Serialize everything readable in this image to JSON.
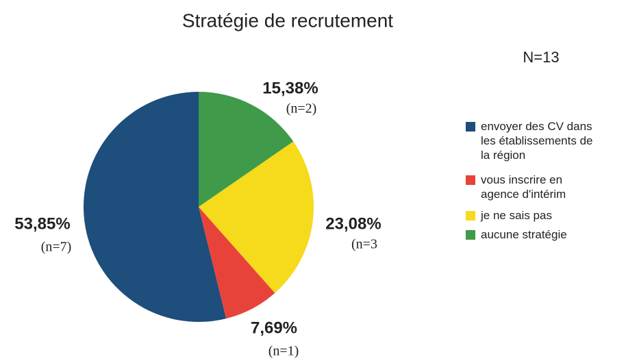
{
  "chart_data": {
    "type": "pie",
    "title": "Stratégie de recrutement",
    "annotation": "N=13",
    "direction": "counterclockwise",
    "categories": [
      "envoyer des CV dans les établissements de la région",
      "vous inscrire en agence d'intérim",
      "je ne sais pas",
      "aucune stratégie"
    ],
    "values": [
      53.85,
      7.69,
      23.08,
      15.38
    ],
    "value_labels": [
      "53,85%",
      "7,69%",
      "23,08%",
      "15,38%"
    ],
    "counts": [
      7,
      1,
      3,
      2
    ],
    "count_labels": [
      "(n=7)",
      "(n=1)",
      "(n=3",
      "(n=2)"
    ],
    "colors": [
      "#1d4e7c",
      "#e8433a",
      "#f6da1c",
      "#3f9a4a"
    ],
    "legend": "right"
  }
}
